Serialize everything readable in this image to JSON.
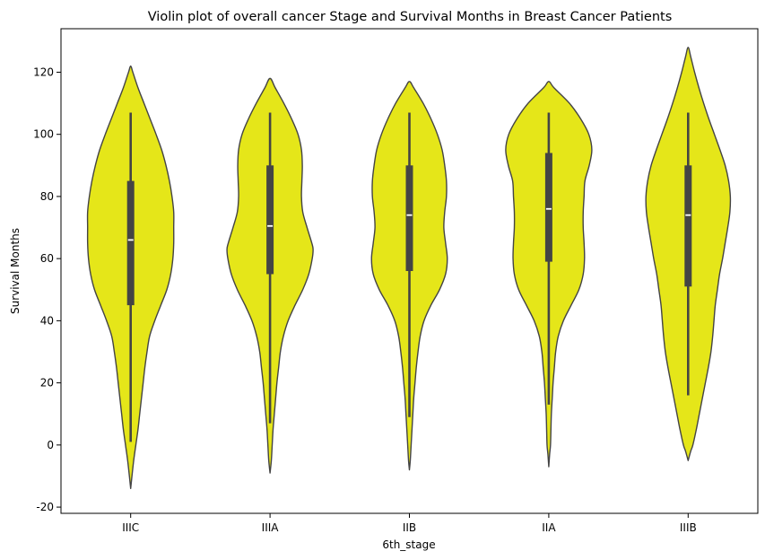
{
  "chart_data": {
    "type": "violin",
    "title": "Violin plot of overall cancer Stage and Survival Months in Breast Cancer Patients",
    "xlabel": "6th_stage",
    "ylabel": "Survival Months",
    "ylim": [
      -22,
      134
    ],
    "yticks": [
      -20,
      0,
      20,
      40,
      60,
      80,
      100,
      120
    ],
    "grid": false,
    "legend": "none",
    "colors": {
      "fill": "#e5e619",
      "edge": "#444444",
      "box": "#444444",
      "median": "#ffffff"
    },
    "categories": [
      "IIIC",
      "IIIA",
      "IIB",
      "IIA",
      "IIIB"
    ],
    "series": [
      {
        "category": "IIIC",
        "min": 1,
        "q1": 45,
        "median": 66,
        "q3": 85,
        "max": 107,
        "kde_min": -14,
        "kde_max": 122,
        "profile": [
          [
            -14,
            0
          ],
          [
            -10,
            0.03
          ],
          [
            -5,
            0.07
          ],
          [
            0,
            0.12
          ],
          [
            5,
            0.17
          ],
          [
            10,
            0.21
          ],
          [
            15,
            0.25
          ],
          [
            20,
            0.29
          ],
          [
            25,
            0.33
          ],
          [
            30,
            0.38
          ],
          [
            35,
            0.44
          ],
          [
            40,
            0.56
          ],
          [
            45,
            0.7
          ],
          [
            50,
            0.84
          ],
          [
            55,
            0.93
          ],
          [
            60,
            0.98
          ],
          [
            65,
            1.0
          ],
          [
            70,
            1.0
          ],
          [
            75,
            1.0
          ],
          [
            80,
            0.96
          ],
          [
            85,
            0.9
          ],
          [
            90,
            0.82
          ],
          [
            95,
            0.72
          ],
          [
            100,
            0.59
          ],
          [
            105,
            0.45
          ],
          [
            110,
            0.31
          ],
          [
            115,
            0.17
          ],
          [
            120,
            0.05
          ],
          [
            122,
            0
          ]
        ]
      },
      {
        "category": "IIIA",
        "min": 7,
        "q1": 55,
        "median": 70.5,
        "q3": 90,
        "max": 107,
        "kde_min": -9,
        "kde_max": 118,
        "profile": [
          [
            -9,
            0
          ],
          [
            -5,
            0.03
          ],
          [
            0,
            0.05
          ],
          [
            5,
            0.07
          ],
          [
            10,
            0.1
          ],
          [
            15,
            0.13
          ],
          [
            20,
            0.16
          ],
          [
            25,
            0.2
          ],
          [
            30,
            0.24
          ],
          [
            35,
            0.31
          ],
          [
            40,
            0.42
          ],
          [
            45,
            0.58
          ],
          [
            50,
            0.76
          ],
          [
            55,
            0.9
          ],
          [
            60,
            0.98
          ],
          [
            63,
            1.0
          ],
          [
            65,
            0.97
          ],
          [
            70,
            0.86
          ],
          [
            75,
            0.76
          ],
          [
            80,
            0.73
          ],
          [
            85,
            0.74
          ],
          [
            90,
            0.75
          ],
          [
            95,
            0.73
          ],
          [
            100,
            0.65
          ],
          [
            105,
            0.5
          ],
          [
            110,
            0.32
          ],
          [
            115,
            0.12
          ],
          [
            118,
            0
          ]
        ]
      },
      {
        "category": "IIB",
        "min": 9,
        "q1": 56,
        "median": 74,
        "q3": 90,
        "max": 107,
        "kde_min": -8,
        "kde_max": 117,
        "profile": [
          [
            -8,
            0
          ],
          [
            -5,
            0.02
          ],
          [
            0,
            0.04
          ],
          [
            5,
            0.06
          ],
          [
            10,
            0.08
          ],
          [
            15,
            0.1
          ],
          [
            20,
            0.13
          ],
          [
            25,
            0.16
          ],
          [
            30,
            0.2
          ],
          [
            35,
            0.25
          ],
          [
            40,
            0.34
          ],
          [
            45,
            0.5
          ],
          [
            50,
            0.7
          ],
          [
            55,
            0.84
          ],
          [
            60,
            0.88
          ],
          [
            65,
            0.84
          ],
          [
            70,
            0.8
          ],
          [
            75,
            0.82
          ],
          [
            80,
            0.86
          ],
          [
            85,
            0.86
          ],
          [
            90,
            0.82
          ],
          [
            95,
            0.76
          ],
          [
            100,
            0.65
          ],
          [
            105,
            0.5
          ],
          [
            110,
            0.32
          ],
          [
            115,
            0.1
          ],
          [
            117,
            0
          ]
        ]
      },
      {
        "category": "IIA",
        "min": 13,
        "q1": 59,
        "median": 76,
        "q3": 94,
        "max": 107,
        "kde_min": -7,
        "kde_max": 117,
        "profile": [
          [
            -7,
            0
          ],
          [
            -3,
            0.02
          ],
          [
            0,
            0.04
          ],
          [
            5,
            0.05
          ],
          [
            10,
            0.06
          ],
          [
            15,
            0.08
          ],
          [
            20,
            0.1
          ],
          [
            25,
            0.13
          ],
          [
            30,
            0.16
          ],
          [
            35,
            0.22
          ],
          [
            40,
            0.34
          ],
          [
            45,
            0.52
          ],
          [
            50,
            0.7
          ],
          [
            55,
            0.8
          ],
          [
            60,
            0.83
          ],
          [
            65,
            0.82
          ],
          [
            70,
            0.8
          ],
          [
            75,
            0.8
          ],
          [
            80,
            0.82
          ],
          [
            85,
            0.84
          ],
          [
            90,
            0.94
          ],
          [
            95,
            1.0
          ],
          [
            100,
            0.93
          ],
          [
            105,
            0.74
          ],
          [
            110,
            0.48
          ],
          [
            115,
            0.12
          ],
          [
            117,
            0
          ]
        ]
      },
      {
        "category": "IIIB",
        "min": 16,
        "q1": 51,
        "median": 74,
        "q3": 90,
        "max": 107,
        "kde_min": -5,
        "kde_max": 128,
        "profile": [
          [
            -5,
            0
          ],
          [
            -2,
            0.06
          ],
          [
            0,
            0.11
          ],
          [
            5,
            0.19
          ],
          [
            10,
            0.26
          ],
          [
            15,
            0.33
          ],
          [
            20,
            0.4
          ],
          [
            25,
            0.47
          ],
          [
            30,
            0.53
          ],
          [
            35,
            0.57
          ],
          [
            40,
            0.6
          ],
          [
            45,
            0.63
          ],
          [
            50,
            0.68
          ],
          [
            55,
            0.73
          ],
          [
            60,
            0.8
          ],
          [
            65,
            0.86
          ],
          [
            70,
            0.92
          ],
          [
            75,
            0.97
          ],
          [
            80,
            0.98
          ],
          [
            85,
            0.94
          ],
          [
            90,
            0.86
          ],
          [
            95,
            0.74
          ],
          [
            100,
            0.61
          ],
          [
            105,
            0.48
          ],
          [
            110,
            0.36
          ],
          [
            115,
            0.25
          ],
          [
            120,
            0.15
          ],
          [
            125,
            0.06
          ],
          [
            128,
            0
          ]
        ]
      }
    ]
  }
}
